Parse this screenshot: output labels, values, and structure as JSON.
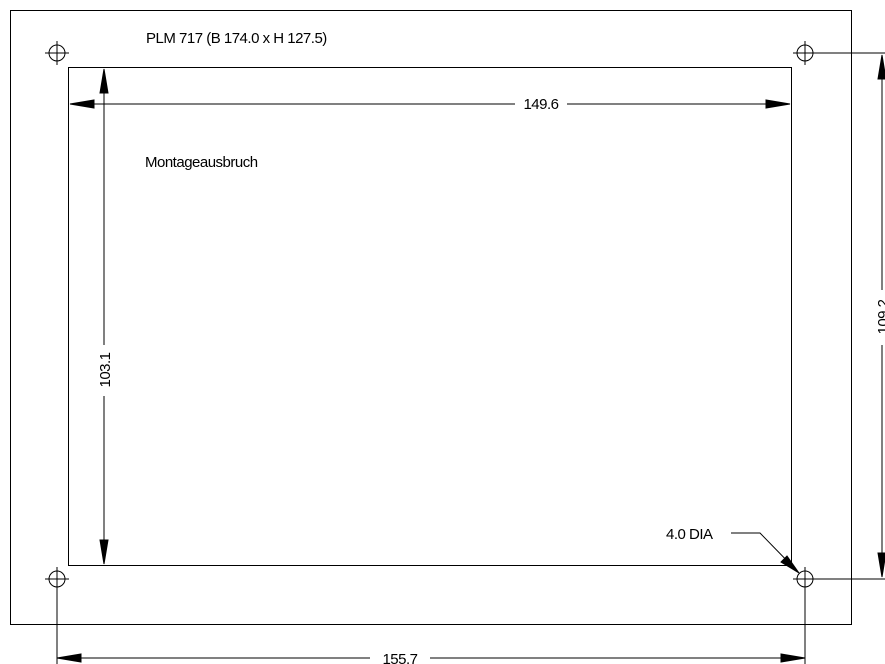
{
  "drawing": {
    "title": "PLM 717 (B 174.0 x H 127.5)",
    "cutout_label": "Montageausbruch",
    "dimensions": {
      "cutout_width": "149.6",
      "cutout_height": "103.1",
      "hole_spacing_horizontal": "155.7",
      "hole_spacing_vertical": "109.2",
      "hole_diameter": "4.0 DIA"
    }
  }
}
